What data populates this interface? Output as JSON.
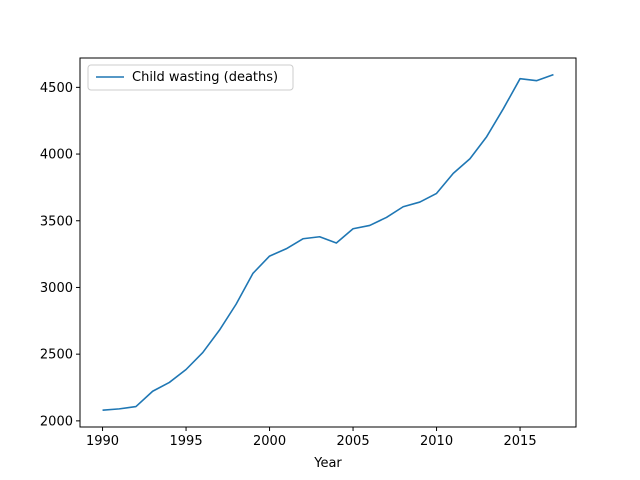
{
  "chart_data": {
    "type": "line",
    "xlabel": "Year",
    "ylabel": "",
    "x": [
      1990,
      1991,
      1992,
      1993,
      1994,
      1995,
      1996,
      1997,
      1998,
      1999,
      2000,
      2001,
      2002,
      2003,
      2004,
      2005,
      2006,
      2007,
      2008,
      2009,
      2010,
      2011,
      2012,
      2013,
      2014,
      2015,
      2016,
      2017
    ],
    "series": [
      {
        "name": "Child wasting (deaths)",
        "color": "#1f77b4",
        "values": [
          2080,
          2090,
          2107,
          2222,
          2288,
          2385,
          2512,
          2680,
          2875,
          3105,
          3235,
          3290,
          3365,
          3380,
          3333,
          3440,
          3465,
          3525,
          3605,
          3640,
          3705,
          3855,
          3965,
          4130,
          4340,
          4565,
          4550,
          4595
        ]
      }
    ],
    "xlim": [
      1988.65,
      2018.35
    ],
    "ylim": [
      1954,
      4720
    ],
    "xticks": [
      1990,
      1995,
      2000,
      2005,
      2010,
      2015
    ],
    "yticks": [
      2000,
      2500,
      3000,
      3500,
      4000,
      4500
    ],
    "grid": false,
    "legend_position": "upper left"
  }
}
